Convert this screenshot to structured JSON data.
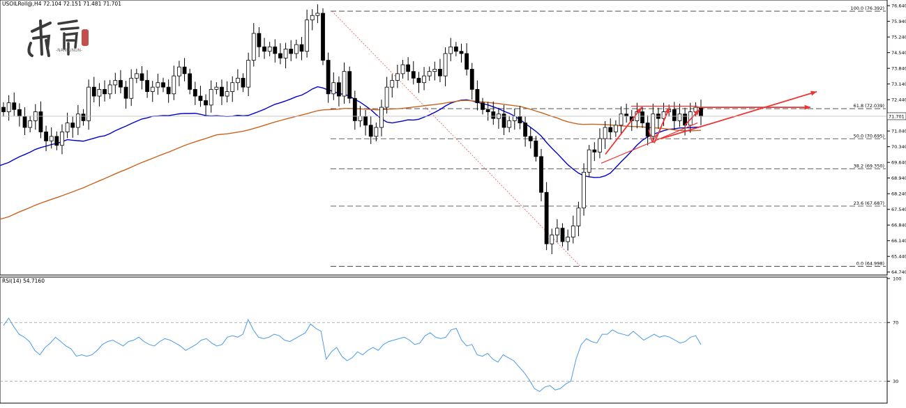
{
  "header": {
    "info": "USOILRoll@,H4  72.104 72.151 71.481 71.701"
  },
  "watermark": {
    "text": "-NANLUNUN-"
  },
  "chart_data": [
    {
      "type": "candlestick",
      "symbol": "USOILRoll@",
      "timeframe": "H4",
      "ohlc_last": {
        "open": 72.104,
        "high": 72.151,
        "low": 71.481,
        "close": 71.701
      },
      "last_price_label": "71.701",
      "ylim": [
        64.67,
        76.83
      ],
      "yticks": [
        "76.640",
        "75.940",
        "75.240",
        "74.540",
        "73.840",
        "73.140",
        "72.440",
        "71.740",
        "71.040",
        "70.340",
        "69.640",
        "68.940",
        "68.240",
        "67.540",
        "66.840",
        "66.140",
        "65.440",
        "64.740"
      ],
      "fibonacci": [
        {
          "label": "100.0 (76.392)",
          "price": 76.392
        },
        {
          "label": "61.8 (72.039)",
          "price": 72.039
        },
        {
          "label": "50.0 (70.695)",
          "price": 70.695
        },
        {
          "label": "38.2 (69.350)",
          "price": 69.35
        },
        {
          "label": "23.6 (67.687)",
          "price": 67.687
        },
        {
          "label": "0.0 (64.998)",
          "price": 64.998
        }
      ],
      "candle_closes": [
        71.9,
        72.3,
        72.0,
        71.7,
        71.2,
        71.5,
        71.9,
        71.0,
        70.6,
        70.8,
        70.4,
        71.0,
        71.4,
        71.2,
        71.8,
        71.5,
        73.0,
        72.6,
        72.9,
        72.7,
        73.1,
        73.3,
        73.0,
        72.5,
        73.4,
        73.6,
        73.3,
        72.8,
        73.0,
        73.2,
        73.0,
        72.7,
        73.5,
        73.9,
        73.6,
        72.9,
        72.6,
        72.4,
        72.2,
        72.9,
        73.0,
        72.6,
        72.8,
        73.2,
        73.4,
        73.0,
        74.2,
        75.4,
        74.8,
        74.6,
        74.8,
        74.5,
        74.3,
        74.7,
        74.5,
        74.9,
        74.6,
        76.0,
        76.2,
        76.3,
        74.2,
        72.7,
        73.2,
        72.6,
        73.7,
        72.5,
        71.5,
        71.7,
        71.3,
        70.8,
        71.2,
        72.1,
        73.0,
        73.3,
        73.6,
        74.0,
        73.7,
        73.4,
        73.2,
        73.5,
        73.7,
        73.8,
        73.5,
        74.5,
        74.8,
        74.6,
        74.5,
        73.8,
        72.9,
        72.3,
        72.0,
        71.9,
        71.6,
        71.8,
        71.2,
        71.5,
        71.7,
        71.4,
        70.8,
        70.6,
        69.9,
        68.3,
        66.0,
        66.4,
        66.7,
        66.1,
        66.3,
        66.8,
        67.6,
        69.2,
        70.2,
        70.1,
        70.7,
        71.2,
        71.0,
        71.3,
        71.8,
        71.7,
        71.5,
        71.9,
        71.4,
        70.8,
        71.8,
        71.6,
        71.9,
        72.0,
        71.5,
        71.8,
        71.3,
        71.9,
        72.1,
        71.7
      ],
      "moving_averages": [
        {
          "color": "#0000cc",
          "start": 69.5,
          "end": 70.55
        },
        {
          "color": "#c8641e",
          "start": 67.1,
          "end": 72.05
        }
      ],
      "trendline_color": "#ee3333"
    },
    {
      "type": "line",
      "indicator": "RSI",
      "label": "RSI(14) 54.7160",
      "last_value": 54.716,
      "ylim": [
        16,
        100
      ],
      "yticks": [
        "100",
        "70",
        "30"
      ],
      "levels": [
        70,
        30
      ],
      "color": "#4a9ae6",
      "values": [
        68,
        73,
        67,
        62,
        60,
        57,
        51,
        48,
        53,
        56,
        60,
        57,
        54,
        52,
        47,
        48,
        47,
        48,
        51,
        55,
        57,
        58,
        56,
        54,
        57,
        58,
        60,
        57,
        55,
        54,
        57,
        59,
        58,
        56,
        54,
        51,
        53,
        55,
        58,
        59,
        56,
        54,
        55,
        60,
        61,
        60,
        62,
        72,
        65,
        60,
        59,
        60,
        62,
        61,
        58,
        57,
        59,
        61,
        63,
        69,
        66,
        64,
        45,
        50,
        53,
        47,
        44,
        46,
        50,
        48,
        51,
        53,
        51,
        55,
        57,
        58,
        59,
        60,
        58,
        55,
        56,
        61,
        63,
        60,
        59,
        60,
        65,
        66,
        58,
        54,
        55,
        48,
        47,
        49,
        45,
        43,
        48,
        46,
        44,
        40,
        36,
        31,
        25,
        23,
        26,
        27,
        24,
        25,
        28,
        30,
        45,
        55,
        59,
        57,
        56,
        62,
        62,
        65,
        63,
        62,
        61,
        64,
        61,
        58,
        60,
        62,
        60,
        61,
        60,
        58,
        56,
        57,
        60,
        61,
        55
      ]
    }
  ]
}
